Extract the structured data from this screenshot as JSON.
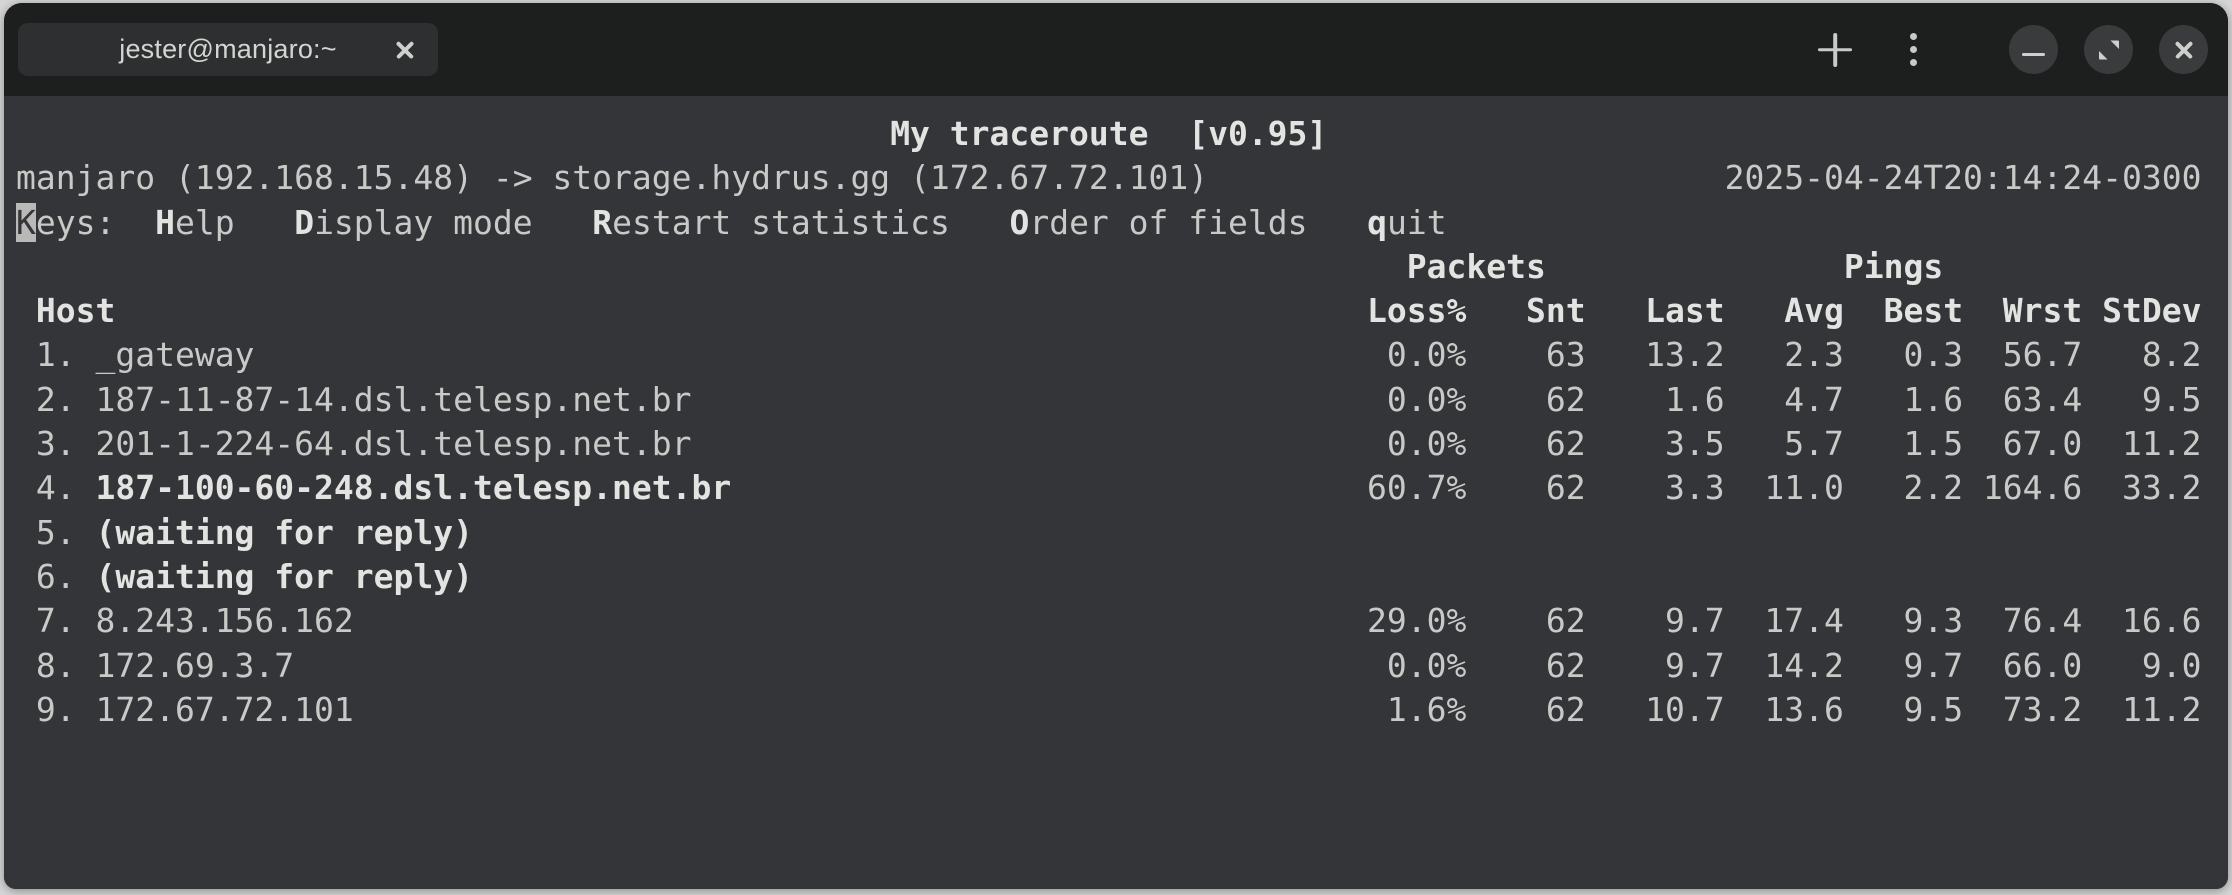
{
  "window": {
    "tab": {
      "title": "jester@manjaro:~"
    },
    "controls": {
      "new_tab_icon": "plus-icon",
      "menu_icon": "kebab-menu-icon",
      "minimize_icon": "minimize-icon",
      "maximize_icon": "maximize-icon",
      "close_icon": "close-icon",
      "tab_close_icon": "close-icon"
    }
  },
  "colors": {
    "frame_bg": "#d6d6d6",
    "titlebar_bg": "#1d1e1e",
    "tab_bg": "#2e2f30",
    "terminal_bg": "#333538",
    "fg": "#c9cac8",
    "bold_fg": "#e3e4e1",
    "cursor_bg": "#b9bab8"
  },
  "mtr": {
    "title": "My traceroute  [v0.95]",
    "source_line": "manjaro (192.168.15.48) -> storage.hydrus.gg (172.67.72.101)",
    "timestamp": "2025-04-24T20:14:24-0300",
    "keys_prefix_cursor_char": "K",
    "keys_prefix_rest": "eys:",
    "keys": [
      {
        "hotkey": "H",
        "rest": "elp"
      },
      {
        "hotkey": "D",
        "rest": "isplay mode"
      },
      {
        "hotkey": "R",
        "rest": "estart statistics"
      },
      {
        "hotkey": "O",
        "rest": "rder of fields"
      },
      {
        "hotkey": "q",
        "rest": "uit"
      }
    ],
    "group_headers": {
      "packets": "Packets",
      "pings": "Pings"
    },
    "host_header": "Host",
    "stat_headers": [
      "Loss%",
      "Snt",
      "Last",
      "Avg",
      "Best",
      "Wrst",
      "StDev"
    ],
    "hops": [
      {
        "n": "1",
        "host": "_gateway",
        "bold_host": false,
        "loss": "0.0%",
        "snt": "63",
        "last": "13.2",
        "avg": "2.3",
        "best": "0.3",
        "wrst": "56.7",
        "stdev": "8.2"
      },
      {
        "n": "2",
        "host": "187-11-87-14.dsl.telesp.net.br",
        "bold_host": false,
        "loss": "0.0%",
        "snt": "62",
        "last": "1.6",
        "avg": "4.7",
        "best": "1.6",
        "wrst": "63.4",
        "stdev": "9.5"
      },
      {
        "n": "3",
        "host": "201-1-224-64.dsl.telesp.net.br",
        "bold_host": false,
        "loss": "0.0%",
        "snt": "62",
        "last": "3.5",
        "avg": "5.7",
        "best": "1.5",
        "wrst": "67.0",
        "stdev": "11.2"
      },
      {
        "n": "4",
        "host": "187-100-60-248.dsl.telesp.net.br",
        "bold_host": true,
        "loss": "60.7%",
        "snt": "62",
        "last": "3.3",
        "avg": "11.0",
        "best": "2.2",
        "wrst": "164.6",
        "stdev": "33.2"
      },
      {
        "n": "5",
        "host": "(waiting for reply)",
        "bold_host": true,
        "waiting": true
      },
      {
        "n": "6",
        "host": "(waiting for reply)",
        "bold_host": true,
        "waiting": true
      },
      {
        "n": "7",
        "host": "8.243.156.162",
        "bold_host": false,
        "loss": "29.0%",
        "snt": "62",
        "last": "9.7",
        "avg": "17.4",
        "best": "9.3",
        "wrst": "76.4",
        "stdev": "16.6"
      },
      {
        "n": "8",
        "host": "172.69.3.7",
        "bold_host": false,
        "loss": "0.0%",
        "snt": "62",
        "last": "9.7",
        "avg": "14.2",
        "best": "9.7",
        "wrst": "66.0",
        "stdev": "9.0"
      },
      {
        "n": "9",
        "host": "172.67.72.101",
        "bold_host": false,
        "loss": "1.6%",
        "snt": "62",
        "last": "10.7",
        "avg": "13.6",
        "best": "9.5",
        "wrst": "73.2",
        "stdev": "11.2"
      }
    ]
  }
}
